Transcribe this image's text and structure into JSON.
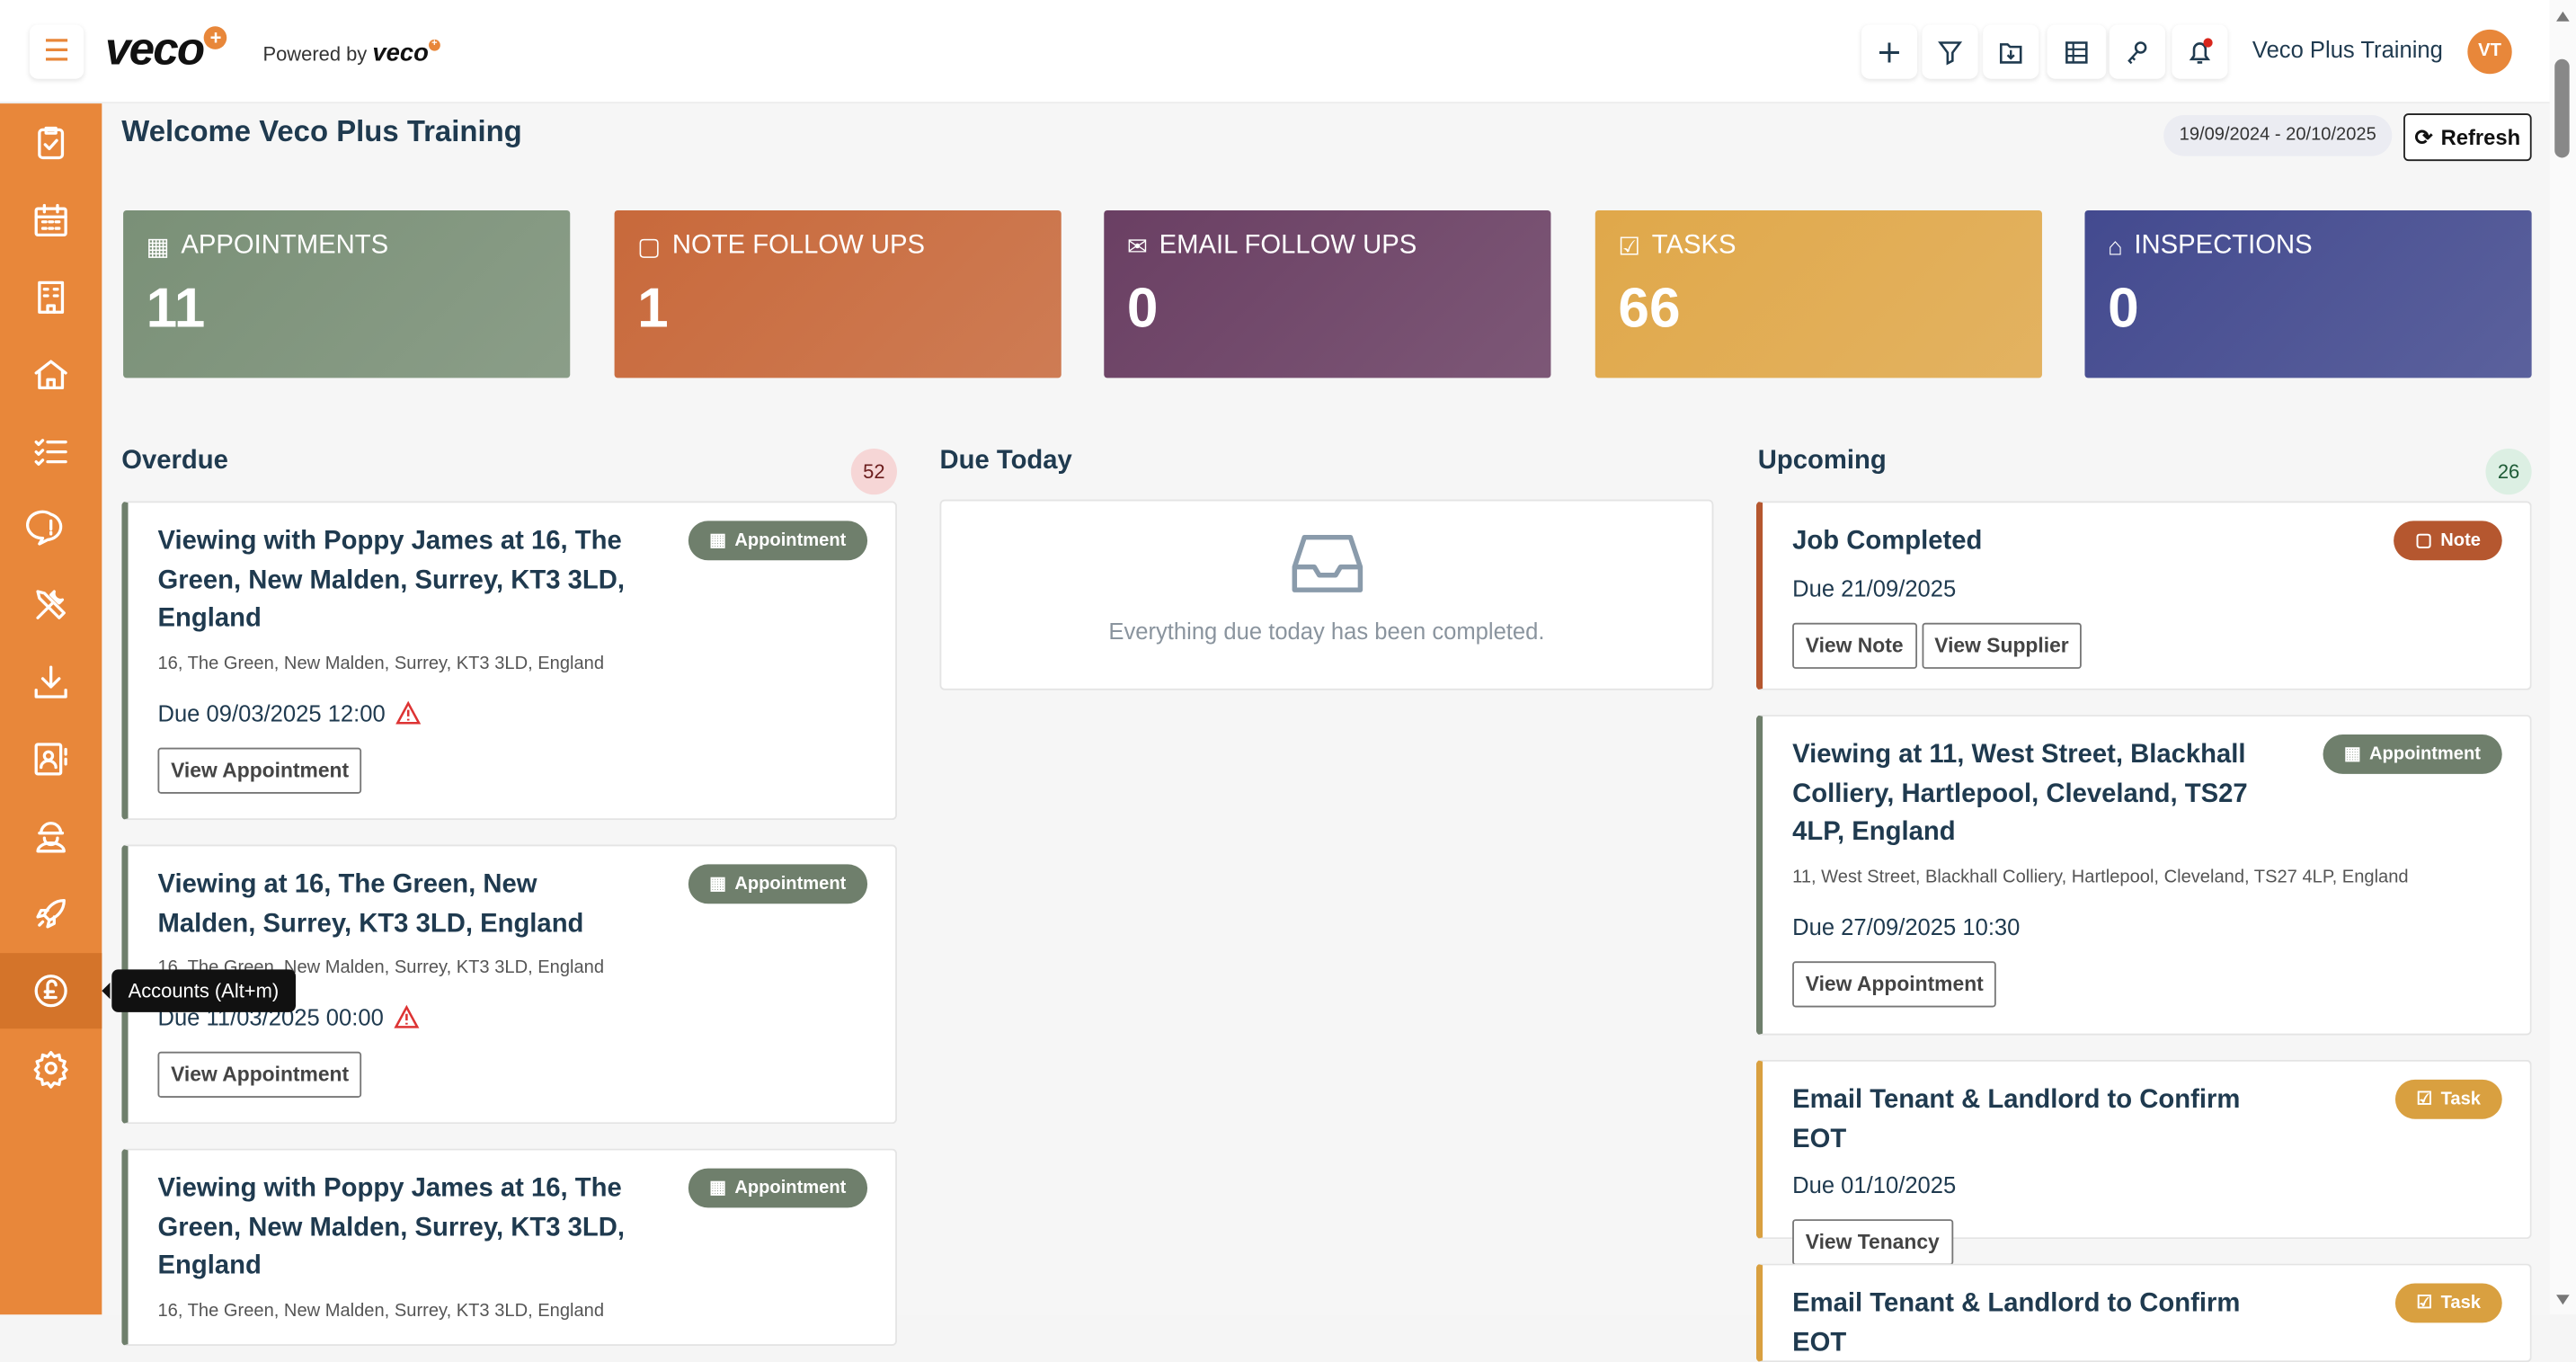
{
  "header": {
    "brand": "veco",
    "powered_by": "Powered by",
    "powered_brand": "veco",
    "user_name": "Veco Plus Training",
    "avatar_initials": "VT",
    "icons": [
      "plus-icon",
      "filter-icon",
      "folder-download-icon",
      "table-icon",
      "key-icon",
      "bell-icon"
    ]
  },
  "sidebar": {
    "items": [
      "tasks-clipboard-icon",
      "calendar-icon",
      "building-icon",
      "home-icon",
      "checklist-icon",
      "message-alert-icon",
      "tools-icon",
      "download-icon",
      "contact-card-icon",
      "worker-icon",
      "rocket-icon",
      "pound-icon",
      "gear-icon"
    ],
    "active_index": 11,
    "tooltip": "Accounts (Alt+m)"
  },
  "page": {
    "title": "Welcome Veco Plus Training",
    "date_range": "19/09/2024 - 20/10/2025",
    "refresh_label": "Refresh"
  },
  "stats": [
    {
      "label": "APPOINTMENTS",
      "value": "11",
      "color": "#7a9077"
    },
    {
      "label": "NOTE FOLLOW UPS",
      "value": "1",
      "color": "#c8693b"
    },
    {
      "label": "EMAIL FOLLOW UPS",
      "value": "0",
      "color": "#6a3f63"
    },
    {
      "label": "TASKS",
      "value": "66",
      "color": "#e0a84a"
    },
    {
      "label": "INSPECTIONS",
      "value": "0",
      "color": "#434a8f"
    }
  ],
  "overdue": {
    "title": "Overdue",
    "count": "52",
    "items": [
      {
        "title": "Viewing with Poppy James at 16, The Green, New Malden, Surrey, KT3 3LD, England",
        "badge": "Appointment",
        "address": "16, The Green, New Malden, Surrey, KT3 3LD, England",
        "due": "Due 09/03/2025 12:00",
        "button": "View Appointment"
      },
      {
        "title": "Viewing at 16, The Green, New Malden, Surrey, KT3 3LD, England",
        "badge": "Appointment",
        "address": "16, The Green, New Malden, Surrey, KT3 3LD, England",
        "due": "Due 11/03/2025 00:00",
        "button": "View Appointment"
      },
      {
        "title": "Viewing with Poppy James at 16, The Green, New Malden, Surrey, KT3 3LD, England",
        "badge": "Appointment",
        "address": "16, The Green, New Malden, Surrey, KT3 3LD, England"
      }
    ]
  },
  "due_today": {
    "title": "Due Today",
    "empty_text": "Everything due today has been completed."
  },
  "upcoming": {
    "title": "Upcoming",
    "count": "26",
    "items": [
      {
        "title": "Job Completed",
        "badge": "Note",
        "due": "Due 21/09/2025",
        "buttons": [
          "View Note",
          "View Supplier"
        ]
      },
      {
        "title": "Viewing at 11, West Street, Blackhall Colliery, Hartlepool, Cleveland, TS27 4LP, England",
        "badge": "Appointment",
        "address": "11, West Street, Blackhall Colliery, Hartlepool, Cleveland, TS27 4LP, England",
        "due": "Due 27/09/2025 10:30",
        "button": "View Appointment"
      },
      {
        "title": "Email Tenant & Landlord to Confirm EOT",
        "badge": "Task",
        "due": "Due 01/10/2025",
        "button": "View Tenancy"
      },
      {
        "title": "Email Tenant & Landlord to Confirm EOT",
        "badge": "Task"
      }
    ]
  }
}
